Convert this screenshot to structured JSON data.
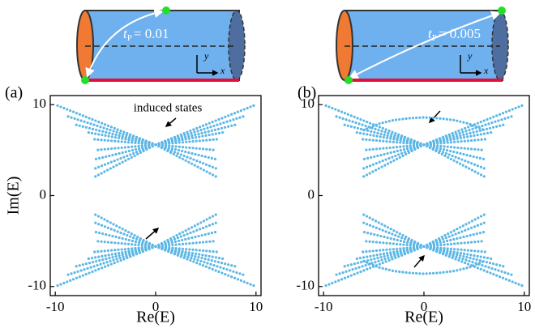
{
  "diagrams": [
    {
      "symbol": "t",
      "subscript": "P",
      "equation": "= 0.01",
      "x_axis": "x",
      "y_axis": "y"
    },
    {
      "symbol": "t",
      "subscript": "P",
      "equation": "= 0.005",
      "x_axis": "x",
      "y_axis": "y"
    }
  ],
  "chart_data": [
    {
      "type": "line",
      "line_style": "dotted",
      "label": "(a)",
      "xlabel": "Re(E)",
      "ylabel": "Im(E)",
      "annotation": "induced states",
      "color": "#5cb7e6",
      "xlim": [
        -10.5,
        10.5
      ],
      "ylim": [
        -11,
        11
      ],
      "xticks": [
        -10,
        0,
        10
      ],
      "yticks": [
        -10,
        0,
        10
      ],
      "series": [
        {
          "x": [
            0,
            -10
          ],
          "y": [
            5.6,
            10
          ]
        },
        {
          "x": [
            0,
            -9
          ],
          "y": [
            5.6,
            8.8
          ]
        },
        {
          "x": [
            0,
            -8
          ],
          "y": [
            5.6,
            7.8
          ]
        },
        {
          "x": [
            0,
            -7
          ],
          "y": [
            5.6,
            7
          ]
        },
        {
          "x": [
            0,
            -6.2
          ],
          "y": [
            5.6,
            6.2
          ]
        },
        {
          "x": [
            0,
            -6
          ],
          "y": [
            5.6,
            5
          ]
        },
        {
          "x": [
            0,
            -6
          ],
          "y": [
            5.6,
            4
          ]
        },
        {
          "x": [
            0,
            -6
          ],
          "y": [
            5.6,
            3
          ]
        },
        {
          "x": [
            0,
            -6
          ],
          "y": [
            5.6,
            2.1
          ]
        },
        {
          "x": [
            0,
            10
          ],
          "y": [
            5.6,
            10
          ]
        },
        {
          "x": [
            0,
            9
          ],
          "y": [
            5.6,
            8.8
          ]
        },
        {
          "x": [
            0,
            8
          ],
          "y": [
            5.6,
            7.8
          ]
        },
        {
          "x": [
            0,
            7
          ],
          "y": [
            5.6,
            7
          ]
        },
        {
          "x": [
            0,
            6.2
          ],
          "y": [
            5.6,
            6.2
          ]
        },
        {
          "x": [
            0,
            6
          ],
          "y": [
            5.6,
            5
          ]
        },
        {
          "x": [
            0,
            6
          ],
          "y": [
            5.6,
            4
          ]
        },
        {
          "x": [
            0,
            6
          ],
          "y": [
            5.6,
            3
          ]
        },
        {
          "x": [
            0,
            6
          ],
          "y": [
            5.6,
            2.1
          ]
        },
        {
          "x": [
            0,
            -10
          ],
          "y": [
            -5.6,
            -10
          ]
        },
        {
          "x": [
            0,
            -9
          ],
          "y": [
            -5.6,
            -8.8
          ]
        },
        {
          "x": [
            0,
            -8
          ],
          "y": [
            -5.6,
            -7.8
          ]
        },
        {
          "x": [
            0,
            -7
          ],
          "y": [
            -5.6,
            -7
          ]
        },
        {
          "x": [
            0,
            -6.2
          ],
          "y": [
            -5.6,
            -6.2
          ]
        },
        {
          "x": [
            0,
            -6
          ],
          "y": [
            -5.6,
            -5
          ]
        },
        {
          "x": [
            0,
            -6
          ],
          "y": [
            -5.6,
            -4
          ]
        },
        {
          "x": [
            0,
            -6
          ],
          "y": [
            -5.6,
            -3
          ]
        },
        {
          "x": [
            0,
            -6
          ],
          "y": [
            -5.6,
            -2.1
          ]
        },
        {
          "x": [
            0,
            10
          ],
          "y": [
            -5.6,
            -10
          ]
        },
        {
          "x": [
            0,
            9
          ],
          "y": [
            -5.6,
            -8.8
          ]
        },
        {
          "x": [
            0,
            8
          ],
          "y": [
            -5.6,
            -7.8
          ]
        },
        {
          "x": [
            0,
            7
          ],
          "y": [
            -5.6,
            -7
          ]
        },
        {
          "x": [
            0,
            6.2
          ],
          "y": [
            -5.6,
            -6.2
          ]
        },
        {
          "x": [
            0,
            6
          ],
          "y": [
            -5.6,
            -5
          ]
        },
        {
          "x": [
            0,
            6
          ],
          "y": [
            -5.6,
            -4
          ]
        },
        {
          "x": [
            0,
            6
          ],
          "y": [
            -5.6,
            -3
          ]
        },
        {
          "x": [
            0,
            6
          ],
          "y": [
            -5.6,
            -2.1
          ]
        }
      ]
    },
    {
      "type": "line",
      "line_style": "dotted",
      "label": "(b)",
      "xlabel": "Re(E)",
      "color": "#5cb7e6",
      "xlim": [
        -10.5,
        10.5
      ],
      "ylim": [
        -11,
        11
      ],
      "xticks": [
        -10,
        0,
        10
      ],
      "yticks": [
        -10,
        0,
        10
      ],
      "series": [
        {
          "x": [
            0,
            -10
          ],
          "y": [
            5.6,
            10
          ]
        },
        {
          "x": [
            0,
            -9
          ],
          "y": [
            5.6,
            8.8
          ]
        },
        {
          "x": [
            0,
            -8
          ],
          "y": [
            5.6,
            7.8
          ]
        },
        {
          "x": [
            0,
            -7
          ],
          "y": [
            5.6,
            7
          ]
        },
        {
          "x": [
            0,
            -6.2
          ],
          "y": [
            5.6,
            6.2
          ]
        },
        {
          "x": [
            0,
            -6
          ],
          "y": [
            5.6,
            5
          ]
        },
        {
          "x": [
            0,
            -6
          ],
          "y": [
            5.6,
            4
          ]
        },
        {
          "x": [
            0,
            -6
          ],
          "y": [
            5.6,
            3
          ]
        },
        {
          "x": [
            0,
            -6
          ],
          "y": [
            5.6,
            2.1
          ]
        },
        {
          "x": [
            0,
            10
          ],
          "y": [
            5.6,
            10
          ]
        },
        {
          "x": [
            0,
            9
          ],
          "y": [
            5.6,
            8.8
          ]
        },
        {
          "x": [
            0,
            8
          ],
          "y": [
            5.6,
            7.8
          ]
        },
        {
          "x": [
            0,
            7
          ],
          "y": [
            5.6,
            7
          ]
        },
        {
          "x": [
            0,
            6.2
          ],
          "y": [
            5.6,
            6.2
          ]
        },
        {
          "x": [
            0,
            6
          ],
          "y": [
            5.6,
            5
          ]
        },
        {
          "x": [
            0,
            6
          ],
          "y": [
            5.6,
            4
          ]
        },
        {
          "x": [
            0,
            6
          ],
          "y": [
            5.6,
            3
          ]
        },
        {
          "x": [
            0,
            6
          ],
          "y": [
            5.6,
            2.1
          ]
        },
        {
          "x": [
            0,
            -10
          ],
          "y": [
            -5.6,
            -10
          ]
        },
        {
          "x": [
            0,
            -9
          ],
          "y": [
            -5.6,
            -8.8
          ]
        },
        {
          "x": [
            0,
            -8
          ],
          "y": [
            -5.6,
            -7.8
          ]
        },
        {
          "x": [
            0,
            -7
          ],
          "y": [
            -5.6,
            -7
          ]
        },
        {
          "x": [
            0,
            -6.2
          ],
          "y": [
            -5.6,
            -6.2
          ]
        },
        {
          "x": [
            0,
            -6
          ],
          "y": [
            -5.6,
            -5
          ]
        },
        {
          "x": [
            0,
            -6
          ],
          "y": [
            -5.6,
            -4
          ]
        },
        {
          "x": [
            0,
            -6
          ],
          "y": [
            -5.6,
            -3
          ]
        },
        {
          "x": [
            0,
            -6
          ],
          "y": [
            -5.6,
            -2.1
          ]
        },
        {
          "x": [
            0,
            10
          ],
          "y": [
            -5.6,
            -10
          ]
        },
        {
          "x": [
            0,
            9
          ],
          "y": [
            -5.6,
            -8.8
          ]
        },
        {
          "x": [
            0,
            8
          ],
          "y": [
            -5.6,
            -7.8
          ]
        },
        {
          "x": [
            0,
            7
          ],
          "y": [
            -5.6,
            -7
          ]
        },
        {
          "x": [
            0,
            6.2
          ],
          "y": [
            -5.6,
            -6.2
          ]
        },
        {
          "x": [
            0,
            6
          ],
          "y": [
            -5.6,
            -5
          ]
        },
        {
          "x": [
            0,
            6
          ],
          "y": [
            -5.6,
            -4
          ]
        },
        {
          "x": [
            0,
            6
          ],
          "y": [
            -5.6,
            -3
          ]
        },
        {
          "x": [
            0,
            6
          ],
          "y": [
            -5.6,
            -2.1
          ]
        },
        {
          "x": [
            -6,
            -4.5,
            -3,
            -1.5,
            0,
            1.5,
            3,
            4.5,
            6
          ],
          "y": [
            7.2,
            7.9,
            8.3,
            8.5,
            8.6,
            8.5,
            8.3,
            7.9,
            7.2
          ]
        },
        {
          "x": [
            -6,
            -4.5,
            -3,
            -1.5,
            0,
            1.5,
            3,
            4.5,
            6
          ],
          "y": [
            -7.2,
            -7.9,
            -8.3,
            -8.5,
            -8.6,
            -8.5,
            -8.3,
            -7.9,
            -7.2
          ]
        }
      ]
    }
  ]
}
